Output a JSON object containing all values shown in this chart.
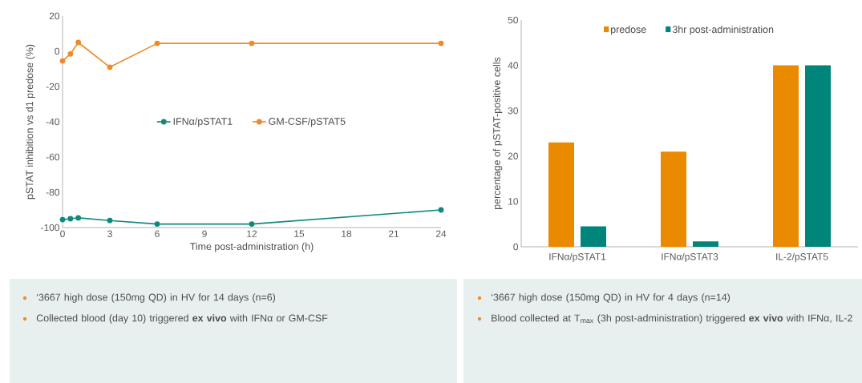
{
  "chart_data": [
    {
      "type": "line",
      "xlabel": "Time post-administration (h)",
      "ylabel": "pSTAT inhibition vs d1 predose (%)",
      "x": [
        0,
        0.5,
        1,
        3,
        6,
        12,
        24
      ],
      "series": [
        {
          "name": "IFNα/pSTAT1",
          "color": "#0e8a7a",
          "values": [
            -95.5,
            -95,
            -94.5,
            -96,
            -98,
            -98,
            -90
          ]
        },
        {
          "name": "GM-CSF/pSTAT5",
          "color": "#ef8a28",
          "values": [
            -5.5,
            -1.5,
            5,
            -9,
            4.5,
            4.5,
            4.5
          ]
        }
      ],
      "xlim": [
        0,
        24
      ],
      "xticks": [
        0,
        3,
        6,
        9,
        12,
        15,
        18,
        21,
        24
      ],
      "ylim": [
        -100,
        20
      ],
      "yticks": [
        -100,
        -80,
        -60,
        -40,
        -20,
        0,
        20
      ],
      "marker": "circle",
      "line_style": "solid",
      "grid": false,
      "legend": "center",
      "annotations": [
        "‘3667 high dose (150mg QD) in HV for 14 days (n=6)",
        "Collected blood (day 10) triggered **ex vivo** with IFNα or GM-CSF"
      ]
    },
    {
      "type": "bar",
      "ylabel": "percentage of pSTAT-positive cells",
      "categories": [
        "IFNα/pSTAT1",
        "IFNα/pSTAT3",
        "IL-2/pSTAT5"
      ],
      "series": [
        {
          "name": "predose",
          "color": "#ea8a00",
          "values": [
            23,
            21,
            40
          ]
        },
        {
          "name": "3hr post-administration",
          "color": "#00857a",
          "values": [
            4.5,
            1.2,
            40
          ]
        }
      ],
      "ylim": [
        0,
        50
      ],
      "yticks": [
        0,
        10,
        20,
        30,
        40,
        50
      ],
      "grid": false,
      "legend": "top",
      "annotations": [
        "‘3667 high dose (150mg QD) in HV for 4 days (n=14)",
        "Blood collected at T$_{max}$ (3h post-administration) triggered **ex vivo** with IFNα, IL-2"
      ]
    }
  ]
}
